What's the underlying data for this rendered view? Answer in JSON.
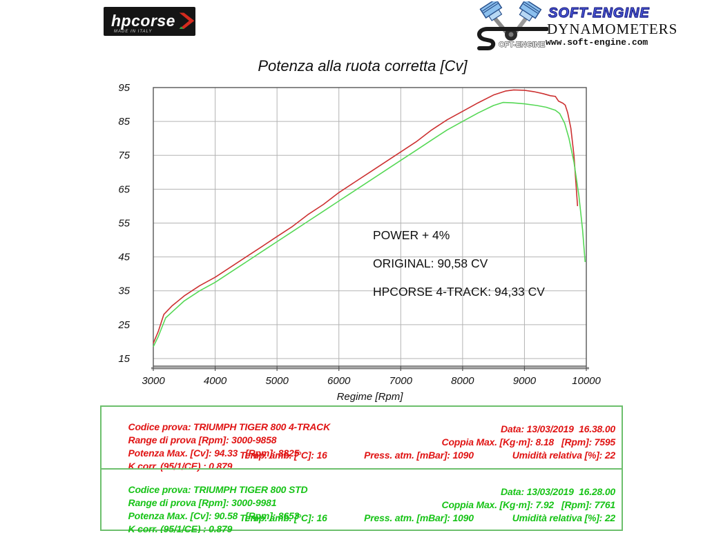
{
  "header": {
    "hpcorse": {
      "word": "hpcorse",
      "madein": "MADE IN ITALY"
    },
    "softengine": {
      "brand": "SOFT-ENGINE",
      "subtitle": "DYNAMOMETERS",
      "url": "www.soft-engine.com",
      "icon_text": "OFT-ENGINE"
    }
  },
  "chart_data": {
    "type": "line",
    "title": "Potenza alla ruota corretta [Cv]",
    "xlabel": "Regime [Rpm]",
    "ylabel": "",
    "xlim": [
      3000,
      10000
    ],
    "ylim": [
      12.75,
      95
    ],
    "x_ticks": [
      3000,
      4000,
      5000,
      6000,
      7000,
      8000,
      9000,
      10000
    ],
    "y_ticks": [
      95,
      85,
      75,
      65,
      55,
      45,
      35,
      25,
      15
    ],
    "grid": true,
    "grid_color": "#b3b3b3",
    "legend_position": "none",
    "annotations": [
      {
        "text": "POWER + 4%"
      },
      {
        "text": "ORIGINAL: 90,58 CV"
      },
      {
        "text": "HPCORSE 4-TRACK: 94,33 CV"
      }
    ],
    "series": [
      {
        "name": "HPCORSE 4-TRACK",
        "key": "hpcorse-curve",
        "color": "#cc3030",
        "max_cv": 94.33,
        "max_rpm": 8825,
        "points": [
          [
            3000,
            19.5
          ],
          [
            3080,
            23
          ],
          [
            3170,
            28
          ],
          [
            3300,
            30.5
          ],
          [
            3500,
            33.5
          ],
          [
            3750,
            36.5
          ],
          [
            4000,
            39
          ],
          [
            4250,
            42
          ],
          [
            4500,
            45
          ],
          [
            4750,
            48
          ],
          [
            5000,
            51
          ],
          [
            5250,
            54
          ],
          [
            5500,
            57.5
          ],
          [
            5750,
            60.5
          ],
          [
            6000,
            64
          ],
          [
            6250,
            67
          ],
          [
            6500,
            70
          ],
          [
            6750,
            73
          ],
          [
            7000,
            76
          ],
          [
            7250,
            79
          ],
          [
            7500,
            82.5
          ],
          [
            7750,
            85.5
          ],
          [
            8000,
            88
          ],
          [
            8250,
            90.5
          ],
          [
            8500,
            92.8
          ],
          [
            8700,
            94
          ],
          [
            8825,
            94.3
          ],
          [
            9000,
            94.2
          ],
          [
            9150,
            93.8
          ],
          [
            9300,
            93.2
          ],
          [
            9420,
            92.6
          ],
          [
            9500,
            92.4
          ],
          [
            9550,
            91
          ],
          [
            9620,
            90.4
          ],
          [
            9660,
            89.8
          ],
          [
            9700,
            87.5
          ],
          [
            9750,
            83
          ],
          [
            9800,
            75
          ],
          [
            9858,
            60
          ]
        ]
      },
      {
        "name": "ORIGINAL (STD)",
        "key": "original-curve",
        "color": "#55d855",
        "max_cv": 90.58,
        "max_rpm": 8653,
        "points": [
          [
            3000,
            18.5
          ],
          [
            3080,
            21.5
          ],
          [
            3200,
            27
          ],
          [
            3350,
            29.5
          ],
          [
            3500,
            32
          ],
          [
            3750,
            35
          ],
          [
            4000,
            37.5
          ],
          [
            4250,
            40.5
          ],
          [
            4500,
            43.5
          ],
          [
            4750,
            46.5
          ],
          [
            5000,
            49.5
          ],
          [
            5250,
            52.5
          ],
          [
            5500,
            55.5
          ],
          [
            5750,
            58.5
          ],
          [
            6000,
            61.5
          ],
          [
            6250,
            64.5
          ],
          [
            6500,
            67.5
          ],
          [
            6750,
            70.5
          ],
          [
            7000,
            73.5
          ],
          [
            7250,
            76.5
          ],
          [
            7500,
            79.5
          ],
          [
            7750,
            82.5
          ],
          [
            8000,
            85
          ],
          [
            8250,
            87.5
          ],
          [
            8500,
            89.7
          ],
          [
            8653,
            90.6
          ],
          [
            8800,
            90.5
          ],
          [
            9000,
            90.2
          ],
          [
            9200,
            89.7
          ],
          [
            9350,
            89.2
          ],
          [
            9500,
            88.3
          ],
          [
            9570,
            87.3
          ],
          [
            9650,
            84.5
          ],
          [
            9720,
            80
          ],
          [
            9800,
            73
          ],
          [
            9880,
            63
          ],
          [
            9940,
            53
          ],
          [
            9981,
            43.5
          ]
        ]
      }
    ]
  },
  "tables": [
    {
      "color": "#e01414",
      "rows": {
        "codice": "Codice prova: TRIUMPH TIGER 800 4-TRACK",
        "range": "Range di prova [Rpm]: 3000-9858",
        "data": "Data: 13/03/2019  16.38.00",
        "potenza": "Potenza Max. [Cv]: 94.33   [Rpm]: 8825",
        "coppia": "Coppia Max. [Kg·m]: 8.18   [Rpm]: 7595",
        "kcorr": "K corr. (95/1/CE) : 0.879",
        "temp": "Temp. amb. [°C]: 16",
        "press": "Press. atm. [mBar]: 1090",
        "umidita": "Umidità relativa [%]: 22"
      }
    },
    {
      "color": "#17c317",
      "rows": {
        "codice": "Codice prova: TRIUMPH TIGER 800 STD",
        "range": "Range di prova [Rpm]: 3000-9981",
        "data": "Data: 13/03/2019  16.28.00",
        "potenza": "Potenza Max. [Cv]: 90.58   [Rpm]: 8653",
        "coppia": "Coppia Max. [Kg·m]: 7.92   [Rpm]: 7761",
        "kcorr": "K corr. (95/1/CE) : 0.879",
        "temp": "Temp. amb. [°C]: 16",
        "press": "Press. atm. [mBar]: 1090",
        "umidita": "Umidità relativa [%]: 22"
      }
    }
  ]
}
